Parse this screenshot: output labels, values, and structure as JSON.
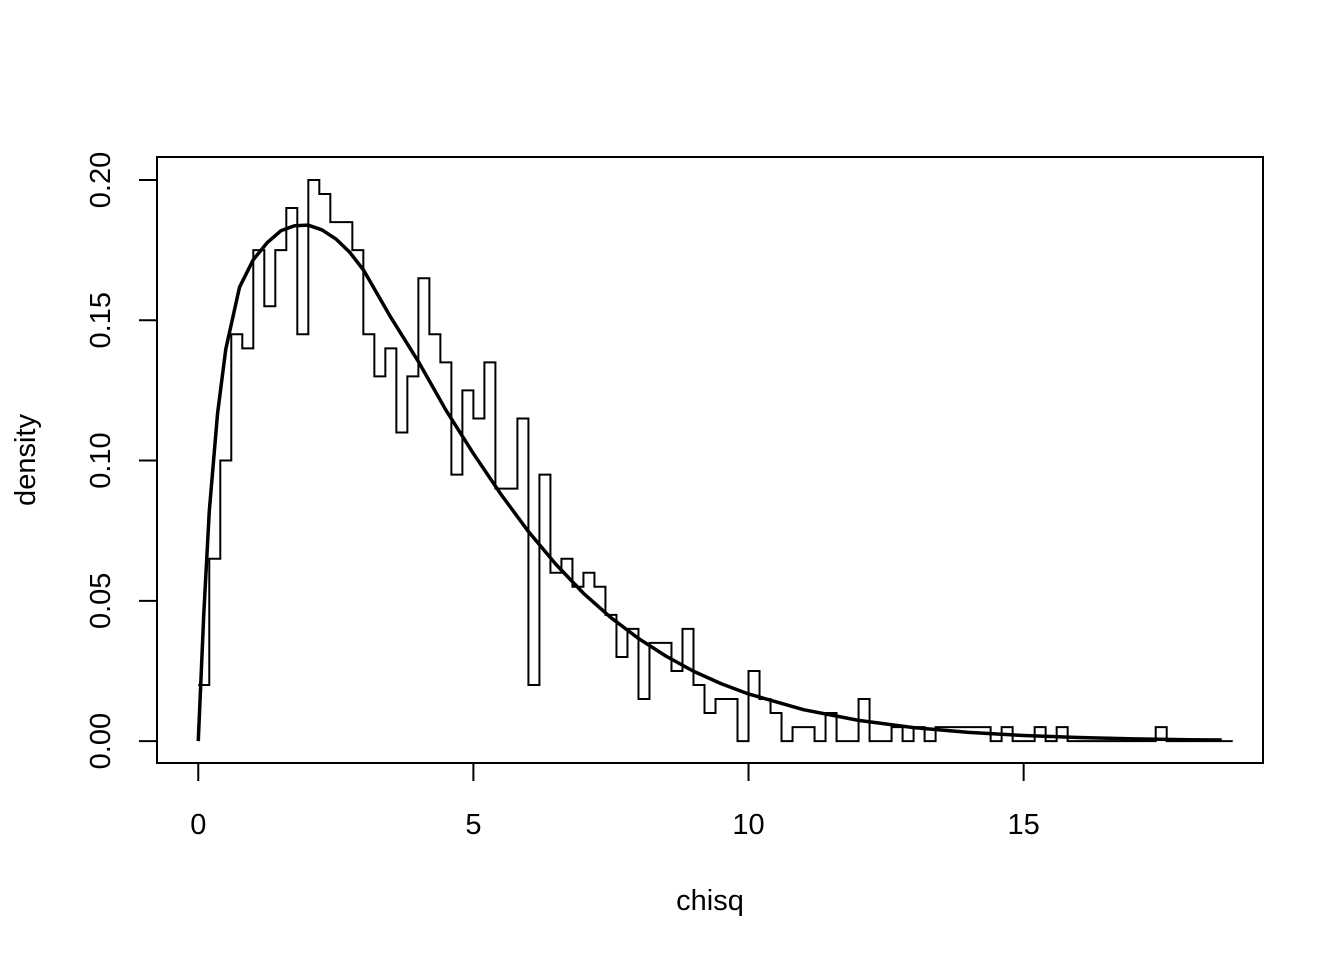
{
  "chart_data": {
    "type": "line",
    "title": "",
    "xlabel": "chisq",
    "ylabel": "density",
    "xlim": [
      -0.75,
      19.35
    ],
    "ylim": [
      -0.0078,
      0.2082
    ],
    "x_ticks": [
      0,
      5,
      10,
      15
    ],
    "x_tick_labels": [
      "0",
      "5",
      "10",
      "15"
    ],
    "y_ticks": [
      0.0,
      0.05,
      0.1,
      0.15,
      0.2
    ],
    "y_tick_labels": [
      "0.00",
      "0.05",
      "0.10",
      "0.15",
      "0.20"
    ],
    "grid": false,
    "legend": "none",
    "colors": {
      "stroke": "#000000",
      "background": "#ffffff"
    },
    "series": [
      {
        "kind": "step",
        "x": [
          0.0,
          0.2,
          0.4,
          0.6,
          0.8,
          1.0,
          1.2,
          1.4,
          1.6,
          1.8,
          2.0,
          2.2,
          2.4,
          2.6,
          2.8,
          3.0,
          3.2,
          3.4,
          3.6,
          3.8,
          4.0,
          4.2,
          4.4,
          4.6,
          4.8,
          5.0,
          5.2,
          5.4,
          5.6,
          5.8,
          6.0,
          6.2,
          6.4,
          6.6,
          6.8,
          7.0,
          7.2,
          7.4,
          7.6,
          7.8,
          8.0,
          8.2,
          8.4,
          8.6,
          8.8,
          9.0,
          9.2,
          9.4,
          9.6,
          9.8,
          10.0,
          10.2,
          10.4,
          10.6,
          10.8,
          11.0,
          11.2,
          11.4,
          11.6,
          11.8,
          12.0,
          12.2,
          12.4,
          12.6,
          12.8,
          13.0,
          13.2,
          13.4,
          13.6,
          13.8,
          14.0,
          14.2,
          14.4,
          14.6,
          14.8,
          15.0,
          15.2,
          15.4,
          15.6,
          15.8,
          16.0,
          16.2,
          16.4,
          16.6,
          16.8,
          17.0,
          17.2,
          17.4,
          17.6,
          17.8,
          18.0,
          18.2,
          18.4,
          18.6
        ],
        "y": [
          0.02,
          0.065,
          0.1,
          0.145,
          0.14,
          0.175,
          0.155,
          0.175,
          0.19,
          0.145,
          0.2,
          0.195,
          0.185,
          0.185,
          0.175,
          0.145,
          0.13,
          0.14,
          0.11,
          0.13,
          0.165,
          0.145,
          0.135,
          0.095,
          0.125,
          0.115,
          0.135,
          0.09,
          0.09,
          0.115,
          0.02,
          0.095,
          0.06,
          0.065,
          0.055,
          0.06,
          0.055,
          0.045,
          0.03,
          0.04,
          0.015,
          0.035,
          0.035,
          0.025,
          0.04,
          0.02,
          0.01,
          0.015,
          0.015,
          0.0,
          0.025,
          0.015,
          0.01,
          0.0,
          0.005,
          0.005,
          0.0,
          0.01,
          0.0,
          0.0,
          0.015,
          0.0,
          0.0,
          0.005,
          0.0,
          0.005,
          0.0,
          0.005,
          0.005,
          0.005,
          0.005,
          0.005,
          0.0,
          0.005,
          0.0,
          0.0,
          0.005,
          0.0,
          0.005,
          0.0,
          0.0,
          0.0,
          0.0,
          0.0,
          0.0,
          0.0,
          0.0,
          0.005,
          0.0,
          0.0,
          0.0,
          0.0,
          0.0,
          0.0
        ]
      },
      {
        "kind": "curve",
        "x": [
          0,
          0.1,
          0.2,
          0.35,
          0.5,
          0.75,
          1.0,
          1.25,
          1.5,
          1.75,
          2.0,
          2.25,
          2.5,
          2.75,
          3.0,
          3.5,
          4.0,
          4.5,
          5.0,
          5.5,
          6.0,
          6.5,
          7.0,
          7.5,
          8.0,
          8.5,
          9.0,
          9.5,
          10.0,
          11.0,
          12.0,
          13.0,
          14.0,
          15.0,
          16.0,
          17.0,
          18.0,
          18.6
        ],
        "y": [
          0.0,
          0.0452,
          0.0819,
          0.1167,
          0.1397,
          0.1618,
          0.1716,
          0.1776,
          0.1819,
          0.1837,
          0.1839,
          0.1822,
          0.179,
          0.1743,
          0.168,
          0.151,
          0.1353,
          0.118,
          0.1025,
          0.088,
          0.0747,
          0.063,
          0.0527,
          0.044,
          0.0366,
          0.0303,
          0.0249,
          0.0205,
          0.0168,
          0.0112,
          0.0074,
          0.0048,
          0.0031,
          0.002,
          0.0013,
          0.0008,
          0.0005,
          0.0004
        ]
      }
    ]
  }
}
